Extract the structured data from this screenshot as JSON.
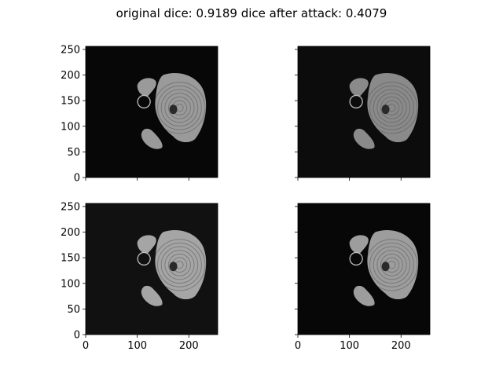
{
  "figure": {
    "suptitle": "original dice: 0.9189 dice after attack: 0.4079"
  },
  "chart_data": [
    {
      "type": "image",
      "panel": "top-left",
      "xlim": [
        0,
        256
      ],
      "ylim": [
        0,
        256
      ],
      "xticks": [
        0,
        100,
        200
      ],
      "yticks": [
        0,
        50,
        100,
        150,
        200,
        250
      ],
      "show_xticklabels": false,
      "show_yticklabels": true,
      "background": "#070707",
      "marker": {
        "shape": "circle",
        "x": 113,
        "y": 148
      },
      "brain_tone": "#9a9a9a",
      "description": "MRI slice"
    },
    {
      "type": "image",
      "panel": "top-right",
      "xlim": [
        0,
        256
      ],
      "ylim": [
        0,
        256
      ],
      "xticks": [
        0,
        100,
        200
      ],
      "yticks": [
        0,
        50,
        100,
        150,
        200,
        250
      ],
      "show_xticklabels": false,
      "show_yticklabels": false,
      "background": "#0c0c0c",
      "marker": {
        "shape": "circle",
        "x": 113,
        "y": 148
      },
      "brain_tone": "#8a8a8a",
      "description": "MRI slice"
    },
    {
      "type": "image",
      "panel": "bottom-left",
      "xlim": [
        0,
        256
      ],
      "ylim": [
        0,
        256
      ],
      "xticks": [
        0,
        100,
        200
      ],
      "yticks": [
        0,
        50,
        100,
        150,
        200,
        250
      ],
      "show_xticklabels": true,
      "show_yticklabels": true,
      "background": "#111111",
      "marker": {
        "shape": "circle",
        "x": 113,
        "y": 148
      },
      "brain_tone": "#a5a5a5",
      "description": "MRI slice"
    },
    {
      "type": "image",
      "panel": "bottom-right",
      "xlim": [
        0,
        256
      ],
      "ylim": [
        0,
        256
      ],
      "xticks": [
        0,
        100,
        200
      ],
      "yticks": [
        0,
        50,
        100,
        150,
        200,
        250
      ],
      "show_xticklabels": true,
      "show_yticklabels": false,
      "background": "#070707",
      "marker": {
        "shape": "circle",
        "x": 113,
        "y": 148
      },
      "brain_tone": "#9d9d9d",
      "description": "MRI slice"
    }
  ]
}
